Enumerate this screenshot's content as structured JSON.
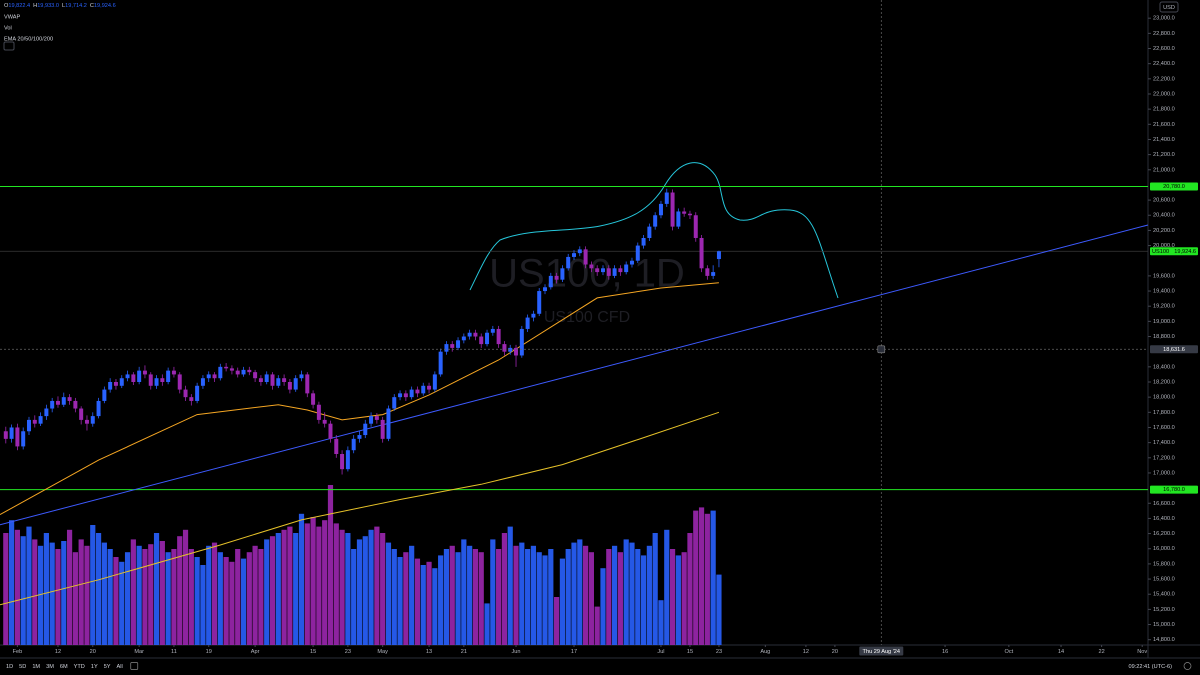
{
  "chart_data": {
    "type": "candlestick",
    "legend_ohlc": [
      {
        "key": "O",
        "value": "19,822.4"
      },
      {
        "key": "H",
        "value": "19,933.0"
      },
      {
        "key": "L",
        "value": "19,714.2"
      },
      {
        "key": "C",
        "value": "19,924.6"
      }
    ],
    "indicators": [
      "VWAP",
      "Vol",
      "EMA 20/50/100/200"
    ],
    "watermark": "US100, 1D",
    "watermark_sub": "US100 CFD",
    "currency": "USD",
    "colors": {
      "up": "#2962ff",
      "down": "#9c27b0"
    },
    "xlim": [
      -1,
      197
    ],
    "ylim": [
      14730,
      23240
    ],
    "vlim": [
      0,
      100
    ],
    "yticks": [
      {
        "value": 14800,
        "label": "14,800.0"
      },
      {
        "value": 15000,
        "label": "15,000.0"
      },
      {
        "value": 15200,
        "label": "15,200.0"
      },
      {
        "value": 15400,
        "label": "15,400.0"
      },
      {
        "value": 15600,
        "label": "15,600.0"
      },
      {
        "value": 15800,
        "label": "15,800.0"
      },
      {
        "value": 16000,
        "label": "16,000.0"
      },
      {
        "value": 16200,
        "label": "16,200.0"
      },
      {
        "value": 16400,
        "label": "16,400.0"
      },
      {
        "value": 16600,
        "label": "16,600.0"
      },
      {
        "value": 17000,
        "label": "17,000.0"
      },
      {
        "value": 17200,
        "label": "17,200.0"
      },
      {
        "value": 17400,
        "label": "17,400.0"
      },
      {
        "value": 17600,
        "label": "17,600.0"
      },
      {
        "value": 17800,
        "label": "17,800.0"
      },
      {
        "value": 18000,
        "label": "18,000.0"
      },
      {
        "value": 18200,
        "label": "18,200.0"
      },
      {
        "value": 18400,
        "label": "18,400.0"
      },
      {
        "value": 18800,
        "label": "18,800.0"
      },
      {
        "value": 19000,
        "label": "19,000.0"
      },
      {
        "value": 19200,
        "label": "19,200.0"
      },
      {
        "value": 19400,
        "label": "19,400.0"
      },
      {
        "value": 19600,
        "label": "19,600.0"
      },
      {
        "value": 20000,
        "label": "20,000.0"
      },
      {
        "value": 20200,
        "label": "20,200.0"
      },
      {
        "value": 20400,
        "label": "20,400.0"
      },
      {
        "value": 20600,
        "label": "20,600.0"
      },
      {
        "value": 21000,
        "label": "21,000.0"
      },
      {
        "value": 21200,
        "label": "21,200.0"
      },
      {
        "value": 21400,
        "label": "21,400.0"
      },
      {
        "value": 21600,
        "label": "21,600.0"
      },
      {
        "value": 21800,
        "label": "21,800.0"
      },
      {
        "value": 22000,
        "label": "22,000.0"
      },
      {
        "value": 22200,
        "label": "22,200.0"
      },
      {
        "value": 22400,
        "label": "22,400.0"
      },
      {
        "value": 22600,
        "label": "22,600.0"
      },
      {
        "value": 22800,
        "label": "22,800.0"
      },
      {
        "value": 23000,
        "label": "23,000.0"
      }
    ],
    "xticks": [
      {
        "value": 2,
        "label": "Feb"
      },
      {
        "value": 9,
        "label": "12"
      },
      {
        "value": 15,
        "label": "20"
      },
      {
        "value": 23,
        "label": "Mar"
      },
      {
        "value": 29,
        "label": "11"
      },
      {
        "value": 35,
        "label": "19"
      },
      {
        "value": 43,
        "label": "Apr"
      },
      {
        "value": 53,
        "label": "15"
      },
      {
        "value": 59,
        "label": "23"
      },
      {
        "value": 65,
        "label": "May"
      },
      {
        "value": 73,
        "label": "13"
      },
      {
        "value": 79,
        "label": "21"
      },
      {
        "value": 88,
        "label": "Jun"
      },
      {
        "value": 98,
        "label": "17"
      },
      {
        "value": 113,
        "label": "Jul"
      },
      {
        "value": 118,
        "label": "15"
      },
      {
        "value": 123,
        "label": "23"
      },
      {
        "value": 131,
        "label": "Aug"
      },
      {
        "value": 138,
        "label": "12"
      },
      {
        "value": 143,
        "label": "20"
      },
      {
        "value": 162,
        "label": "16"
      },
      {
        "value": 173,
        "label": "Oct"
      },
      {
        "value": 182,
        "label": "14"
      },
      {
        "value": 189,
        "label": "22"
      },
      {
        "value": 196,
        "label": "Nov"
      }
    ],
    "ohlc": [
      [
        17550,
        17610,
        17390,
        17450
      ],
      [
        17450,
        17640,
        17400,
        17600
      ],
      [
        17600,
        17650,
        17300,
        17350
      ],
      [
        17350,
        17600,
        17310,
        17550
      ],
      [
        17550,
        17740,
        17500,
        17700
      ],
      [
        17700,
        17760,
        17600,
        17650
      ],
      [
        17650,
        17800,
        17620,
        17750
      ],
      [
        17750,
        17900,
        17700,
        17850
      ],
      [
        17850,
        17990,
        17800,
        17950
      ],
      [
        17950,
        18010,
        17860,
        17900
      ],
      [
        17900,
        18060,
        17870,
        18000
      ],
      [
        18000,
        18040,
        17900,
        17950
      ],
      [
        17950,
        17990,
        17800,
        17850
      ],
      [
        17850,
        17880,
        17640,
        17700
      ],
      [
        17700,
        17760,
        17560,
        17650
      ],
      [
        17650,
        17800,
        17610,
        17750
      ],
      [
        17750,
        17990,
        17720,
        17950
      ],
      [
        17950,
        18140,
        17920,
        18100
      ],
      [
        18100,
        18250,
        18060,
        18200
      ],
      [
        18200,
        18240,
        18100,
        18150
      ],
      [
        18150,
        18290,
        18120,
        18250
      ],
      [
        18250,
        18350,
        18210,
        18300
      ],
      [
        18300,
        18330,
        18160,
        18200
      ],
      [
        18200,
        18400,
        18170,
        18350
      ],
      [
        18350,
        18420,
        18250,
        18300
      ],
      [
        18300,
        18330,
        18100,
        18150
      ],
      [
        18150,
        18290,
        18110,
        18250
      ],
      [
        18250,
        18300,
        18150,
        18200
      ],
      [
        18200,
        18390,
        18170,
        18350
      ],
      [
        18350,
        18400,
        18260,
        18300
      ],
      [
        18300,
        18330,
        18050,
        18100
      ],
      [
        18100,
        18150,
        17950,
        18000
      ],
      [
        18000,
        18040,
        17890,
        17950
      ],
      [
        17950,
        18190,
        17920,
        18150
      ],
      [
        18150,
        18290,
        18110,
        18250
      ],
      [
        18250,
        18340,
        18200,
        18300
      ],
      [
        18300,
        18330,
        18200,
        18250
      ],
      [
        18250,
        18440,
        18220,
        18400
      ],
      [
        18400,
        18450,
        18340,
        18380
      ],
      [
        18380,
        18420,
        18300,
        18350
      ],
      [
        18350,
        18390,
        18260,
        18300
      ],
      [
        18300,
        18400,
        18270,
        18360
      ],
      [
        18360,
        18400,
        18290,
        18330
      ],
      [
        18330,
        18360,
        18200,
        18250
      ],
      [
        18250,
        18290,
        18150,
        18200
      ],
      [
        18200,
        18340,
        18170,
        18300
      ],
      [
        18300,
        18330,
        18100,
        18150
      ],
      [
        18150,
        18290,
        18120,
        18250
      ],
      [
        18250,
        18300,
        18150,
        18200
      ],
      [
        18200,
        18240,
        18050,
        18100
      ],
      [
        18100,
        18290,
        18070,
        18250
      ],
      [
        18250,
        18350,
        18210,
        18300
      ],
      [
        18300,
        18330,
        18000,
        18050
      ],
      [
        18050,
        18090,
        17850,
        17900
      ],
      [
        17900,
        17940,
        17650,
        17700
      ],
      [
        17700,
        17800,
        17600,
        17650
      ],
      [
        17650,
        17690,
        17400,
        17450
      ],
      [
        17450,
        17500,
        17200,
        17250
      ],
      [
        17250,
        17300,
        16980,
        17050
      ],
      [
        17050,
        17350,
        17020,
        17300
      ],
      [
        17300,
        17500,
        17260,
        17450
      ],
      [
        17450,
        17560,
        17400,
        17500
      ],
      [
        17500,
        17700,
        17460,
        17650
      ],
      [
        17650,
        17800,
        17610,
        17750
      ],
      [
        17750,
        17790,
        17650,
        17700
      ],
      [
        17700,
        17740,
        17400,
        17450
      ],
      [
        17450,
        17890,
        17420,
        17850
      ],
      [
        17850,
        18040,
        17820,
        18000
      ],
      [
        18000,
        18090,
        17960,
        18050
      ],
      [
        18050,
        18090,
        17950,
        18000
      ],
      [
        18000,
        18140,
        17970,
        18100
      ],
      [
        18100,
        18140,
        18000,
        18050
      ],
      [
        18050,
        18190,
        18020,
        18150
      ],
      [
        18150,
        18190,
        18050,
        18100
      ],
      [
        18100,
        18340,
        18070,
        18300
      ],
      [
        18300,
        18640,
        18270,
        18600
      ],
      [
        18600,
        18740,
        18560,
        18700
      ],
      [
        18700,
        18740,
        18600,
        18650
      ],
      [
        18650,
        18790,
        18620,
        18750
      ],
      [
        18750,
        18840,
        18710,
        18800
      ],
      [
        18800,
        18890,
        18760,
        18850
      ],
      [
        18850,
        18890,
        18750,
        18800
      ],
      [
        18800,
        18840,
        18650,
        18700
      ],
      [
        18700,
        18890,
        18670,
        18850
      ],
      [
        18850,
        18940,
        18810,
        18900
      ],
      [
        18900,
        18940,
        18650,
        18700
      ],
      [
        18700,
        18740,
        18550,
        18600
      ],
      [
        18600,
        18690,
        18560,
        18650
      ],
      [
        18650,
        18690,
        18400,
        18550
      ],
      [
        18550,
        18940,
        18520,
        18900
      ],
      [
        18900,
        19090,
        18860,
        19050
      ],
      [
        19050,
        19140,
        19000,
        19100
      ],
      [
        19100,
        19440,
        19070,
        19400
      ],
      [
        19400,
        19490,
        19360,
        19450
      ],
      [
        19450,
        19640,
        19420,
        19600
      ],
      [
        19600,
        19640,
        19500,
        19550
      ],
      [
        19550,
        19740,
        19520,
        19700
      ],
      [
        19700,
        19890,
        19670,
        19850
      ],
      [
        19850,
        19940,
        19810,
        19900
      ],
      [
        19900,
        19990,
        19860,
        19950
      ],
      [
        19950,
        19990,
        19700,
        19750
      ],
      [
        19750,
        19790,
        19650,
        19700
      ],
      [
        19700,
        19740,
        19600,
        19650
      ],
      [
        19650,
        19740,
        19610,
        19700
      ],
      [
        19700,
        19740,
        19550,
        19600
      ],
      [
        19600,
        19740,
        19570,
        19700
      ],
      [
        19700,
        19740,
        19600,
        19650
      ],
      [
        19650,
        19790,
        19620,
        19750
      ],
      [
        19750,
        19840,
        19710,
        19800
      ],
      [
        19800,
        20040,
        19770,
        20000
      ],
      [
        20000,
        20140,
        19960,
        20100
      ],
      [
        20100,
        20290,
        20060,
        20250
      ],
      [
        20250,
        20440,
        20210,
        20400
      ],
      [
        20400,
        20590,
        20360,
        20550
      ],
      [
        20550,
        20750,
        20510,
        20700
      ],
      [
        20700,
        20740,
        20200,
        20250
      ],
      [
        20250,
        20490,
        20220,
        20450
      ],
      [
        20450,
        20500,
        20380,
        20420
      ],
      [
        20420,
        20460,
        20350,
        20400
      ],
      [
        20400,
        20440,
        20050,
        20100
      ],
      [
        20100,
        20140,
        19650,
        19700
      ],
      [
        19700,
        19740,
        19550,
        19600
      ],
      [
        19600,
        19740,
        19560,
        19650
      ],
      [
        19822.4,
        19933,
        19714.2,
        19924.6
      ]
    ],
    "volume": [
      70,
      78,
      72,
      68,
      74,
      66,
      62,
      70,
      64,
      60,
      65,
      72,
      58,
      66,
      62,
      75,
      70,
      64,
      60,
      55,
      52,
      58,
      66,
      62,
      60,
      63,
      70,
      65,
      58,
      60,
      68,
      72,
      60,
      55,
      50,
      62,
      64,
      58,
      55,
      52,
      60,
      54,
      58,
      62,
      60,
      66,
      68,
      70,
      72,
      74,
      70,
      82,
      76,
      80,
      74,
      78,
      100,
      76,
      72,
      70,
      60,
      66,
      68,
      72,
      74,
      70,
      64,
      60,
      55,
      58,
      62,
      54,
      50,
      52,
      48,
      56,
      60,
      62,
      58,
      66,
      62,
      60,
      58,
      26,
      66,
      60,
      70,
      74,
      62,
      64,
      60,
      62,
      58,
      56,
      60,
      30,
      54,
      60,
      64,
      66,
      62,
      58,
      24,
      48,
      60,
      62,
      58,
      66,
      64,
      60,
      56,
      62,
      70,
      28,
      72,
      60,
      56,
      58,
      70,
      84,
      86,
      82,
      84,
      44
    ],
    "overlays": [
      {
        "color": "#f5a623",
        "points": [
          [
            -1,
            16450
          ],
          [
            16,
            17170
          ],
          [
            33,
            17770
          ],
          [
            47,
            17900
          ],
          [
            52,
            17830
          ],
          [
            58,
            17700
          ],
          [
            65,
            17770
          ],
          [
            73,
            18030
          ],
          [
            85,
            18490
          ],
          [
            96,
            19020
          ],
          [
            102,
            19310
          ],
          [
            113,
            19440
          ],
          [
            123,
            19510
          ]
        ]
      },
      {
        "color": "#e6c229",
        "points": [
          [
            -1,
            15260
          ],
          [
            16,
            15590
          ],
          [
            37,
            16050
          ],
          [
            51,
            16380
          ],
          [
            68,
            16650
          ],
          [
            82,
            16850
          ],
          [
            96,
            17110
          ],
          [
            109,
            17440
          ],
          [
            123,
            17800
          ]
        ]
      },
      {
        "color": "#3d5afe",
        "points": [
          [
            -1,
            16316
          ],
          [
            197,
            20271
          ]
        ]
      }
    ],
    "hlines": [
      {
        "value": 20780,
        "label": "20,780.0",
        "color": "#22e622"
      },
      {
        "value": 16780,
        "label": "16,780.0",
        "color": "#22e622"
      }
    ],
    "last_price": {
      "value": 19924.6,
      "label": "19,924.6",
      "symbol": "US100",
      "color": "#22e622"
    },
    "crosshair": {
      "x": 151,
      "x_label": "Thu 29 Aug '24",
      "y": 18631.6,
      "y_label": "18,631.6"
    },
    "ranges": [
      "1D",
      "5D",
      "1M",
      "3M",
      "6M",
      "YTD",
      "1Y",
      "5Y",
      "All"
    ],
    "clock": "09:22:41 (UTC-6)"
  }
}
